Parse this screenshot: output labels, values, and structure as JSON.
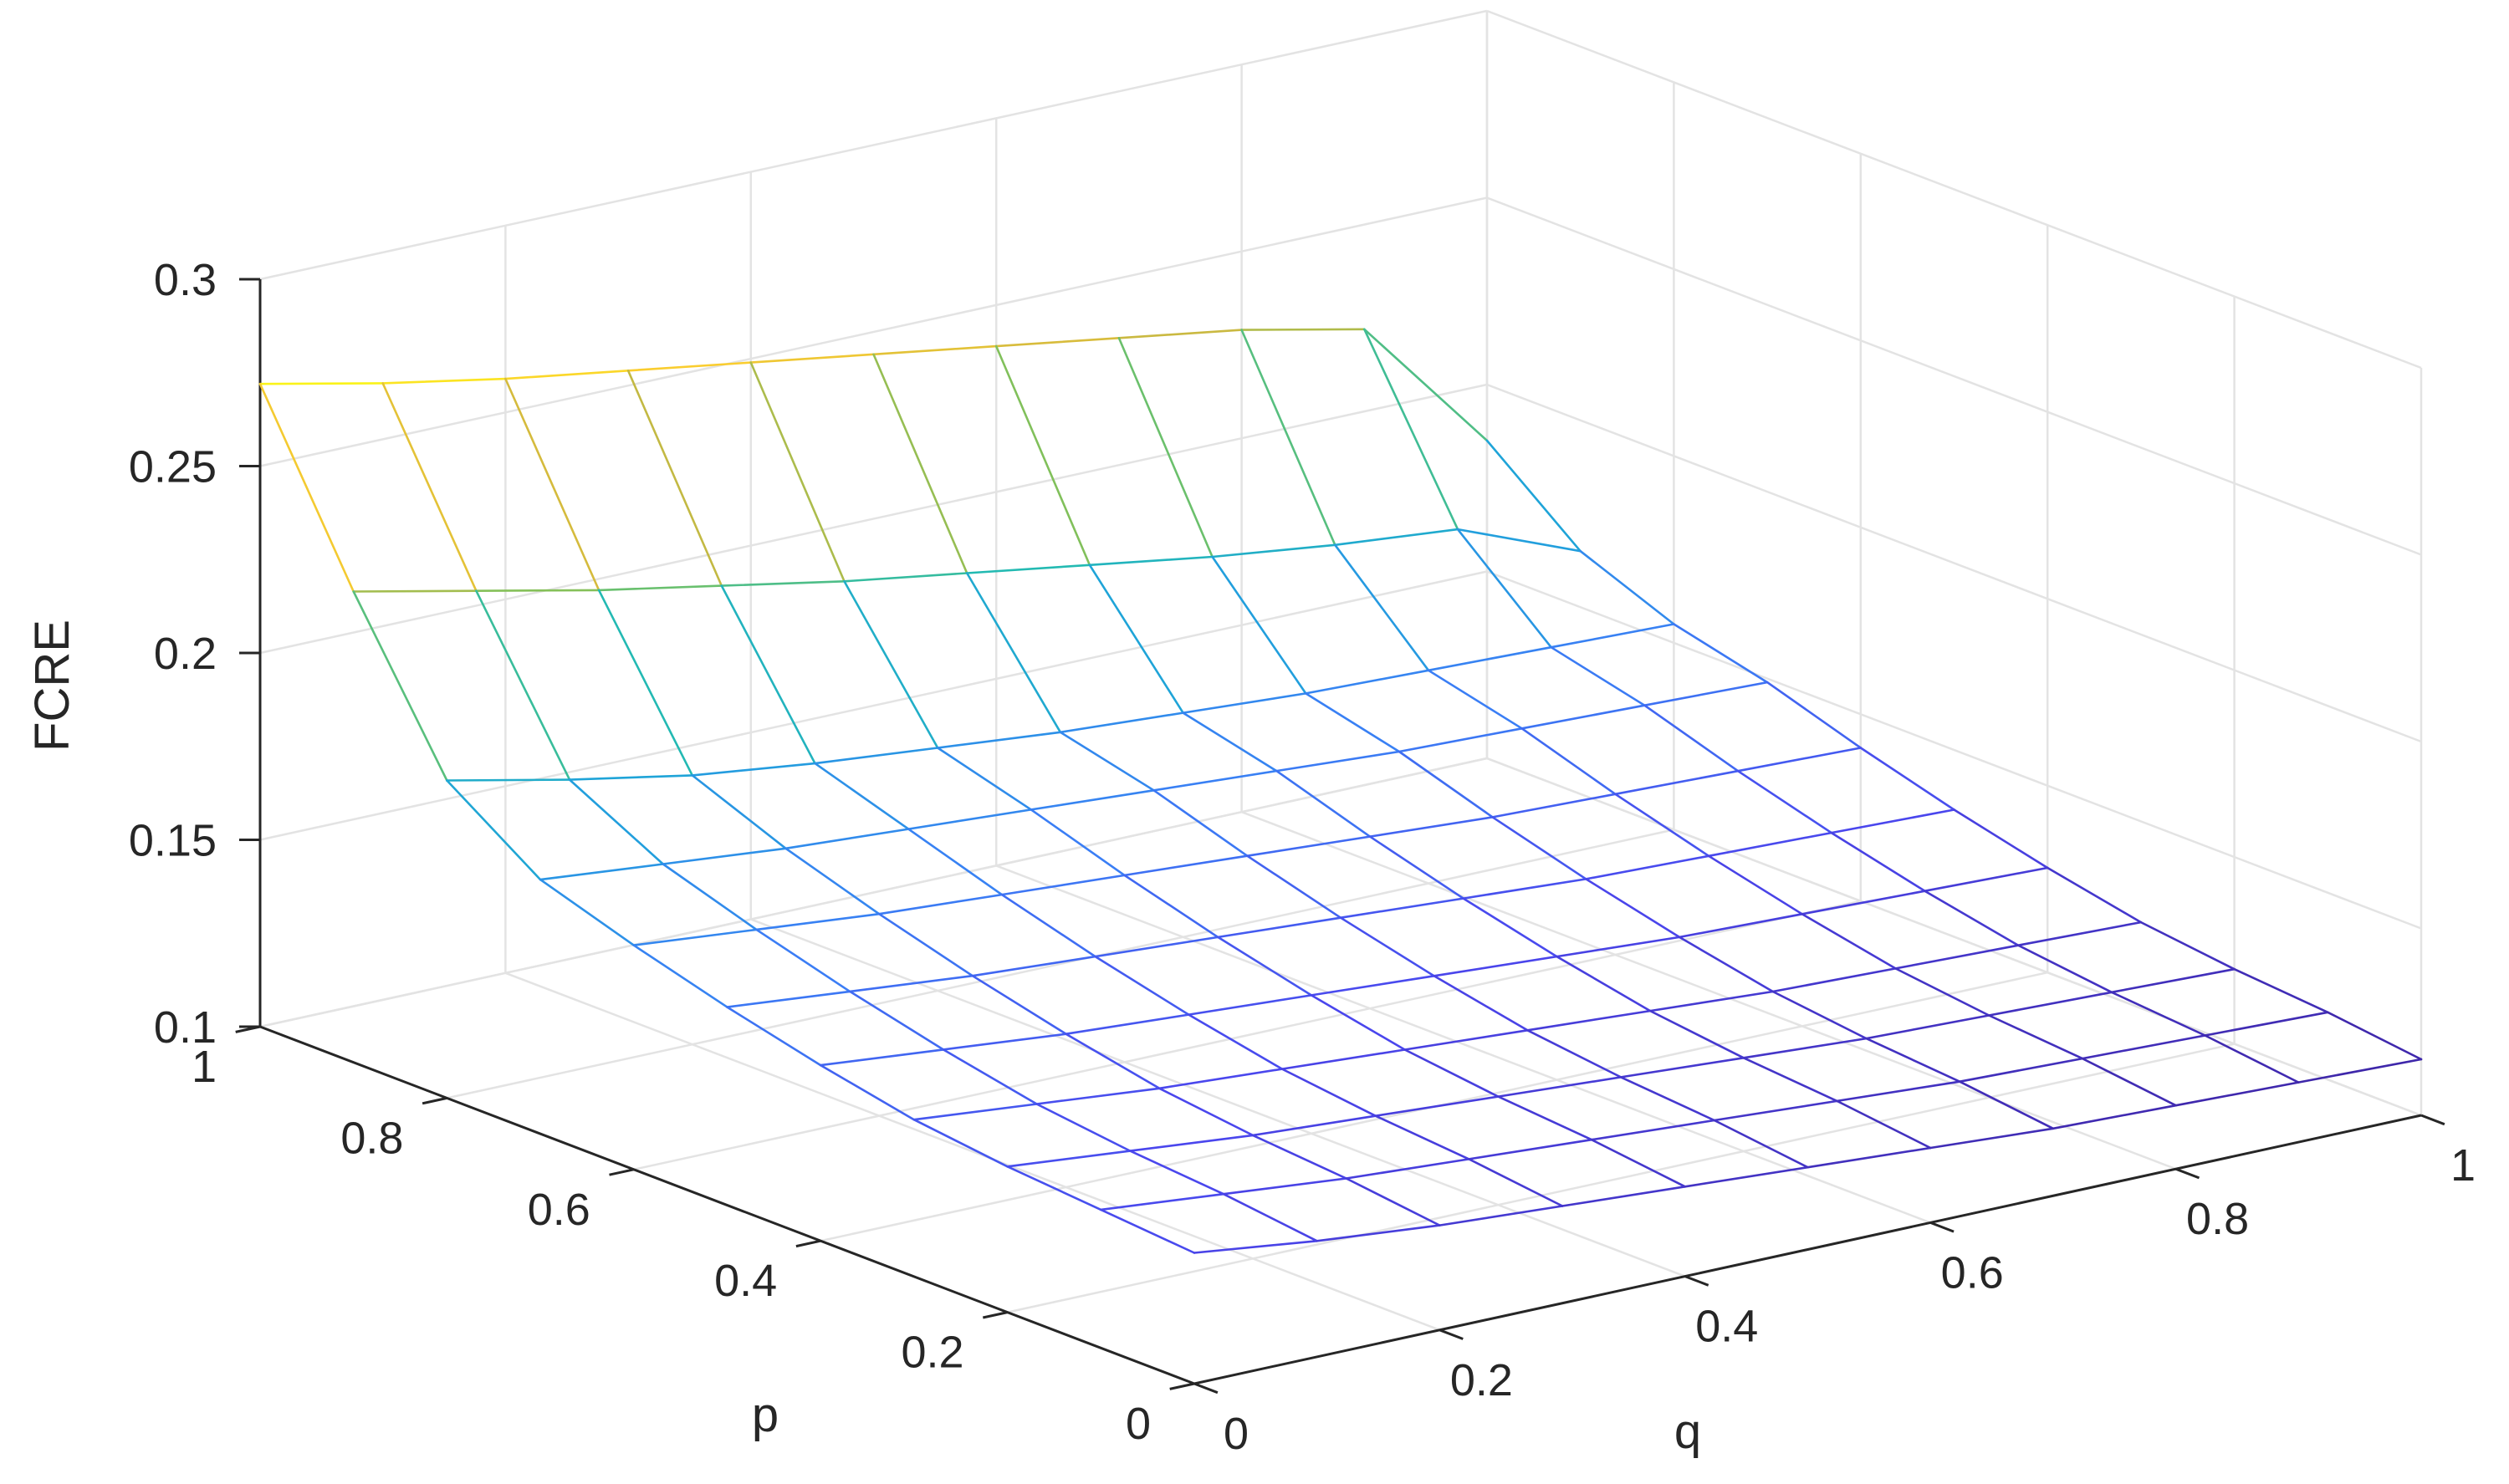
{
  "chart_data": {
    "type": "mesh3d",
    "title": "",
    "xlabel": "q",
    "ylabel": "p",
    "zlabel": "FCRE",
    "x": [
      0,
      0.1,
      0.2,
      0.3,
      0.4,
      0.5,
      0.6,
      0.7,
      0.8,
      0.9,
      1
    ],
    "y": [
      0,
      0.1,
      0.2,
      0.3,
      0.4,
      0.5,
      0.6,
      0.7,
      0.8,
      0.9,
      1
    ],
    "xlim": [
      0,
      1
    ],
    "ylim": [
      0,
      1
    ],
    "zlim": [
      0.1,
      0.3
    ],
    "xticks": [
      "0",
      "0.2",
      "0.4",
      "0.6",
      "0.8",
      "1"
    ],
    "yticks": [
      "0",
      "0.2",
      "0.4",
      "0.6",
      "0.8",
      "1"
    ],
    "zticks": [
      "0.1",
      "0.15",
      "0.2",
      "0.25",
      "0.3"
    ],
    "grid": true,
    "colormap": "parula",
    "colormap_stops": [
      "#3e26a8",
      "#4a46ed",
      "#3a7ff5",
      "#1fa3da",
      "#23bbb0",
      "#7bc15d",
      "#cfb83f",
      "#fcce2e",
      "#f9fb15"
    ],
    "colors": {
      "grid": "#e3e3e3",
      "axis": "#262626",
      "background": "#ffffff"
    },
    "z": [
      [
        0.135,
        0.131,
        0.128,
        0.126,
        0.124,
        0.122,
        0.12,
        0.118,
        0.117,
        0.116,
        0.115
      ],
      [
        0.137,
        0.134,
        0.131,
        0.129,
        0.127,
        0.125,
        0.123,
        0.121,
        0.12,
        0.119,
        0.118
      ],
      [
        0.139,
        0.136,
        0.133,
        0.131,
        0.129,
        0.127,
        0.125,
        0.123,
        0.122,
        0.121,
        0.12
      ],
      [
        0.142,
        0.139,
        0.136,
        0.134,
        0.132,
        0.13,
        0.128,
        0.126,
        0.125,
        0.124,
        0.123
      ],
      [
        0.147,
        0.144,
        0.141,
        0.139,
        0.137,
        0.135,
        0.133,
        0.131,
        0.13,
        0.129,
        0.128
      ],
      [
        0.153,
        0.15,
        0.147,
        0.145,
        0.143,
        0.141,
        0.139,
        0.137,
        0.136,
        0.135,
        0.134
      ],
      [
        0.16,
        0.157,
        0.154,
        0.152,
        0.15,
        0.148,
        0.146,
        0.144,
        0.143,
        0.142,
        0.141
      ],
      [
        0.168,
        0.165,
        0.162,
        0.16,
        0.158,
        0.156,
        0.154,
        0.152,
        0.151,
        0.15,
        0.149
      ],
      [
        0.185,
        0.178,
        0.172,
        0.168,
        0.165,
        0.162,
        0.16,
        0.158,
        0.157,
        0.156,
        0.155
      ],
      [
        0.226,
        0.219,
        0.212,
        0.206,
        0.2,
        0.195,
        0.19,
        0.185,
        0.181,
        0.178,
        0.165
      ],
      [
        0.272,
        0.265,
        0.259,
        0.254,
        0.249,
        0.244,
        0.239,
        0.234,
        0.229,
        0.222,
        0.185
      ]
    ]
  }
}
